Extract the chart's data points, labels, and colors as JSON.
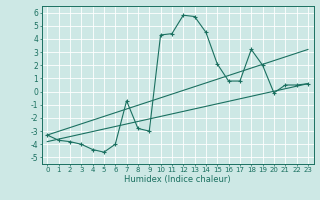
{
  "xlabel": "Humidex (Indice chaleur)",
  "bg_color": "#cde8e5",
  "grid_color": "#ffffff",
  "line_color": "#1a7060",
  "xlim": [
    -0.5,
    23.5
  ],
  "ylim": [
    -5.5,
    6.5
  ],
  "xticks": [
    0,
    1,
    2,
    3,
    4,
    5,
    6,
    7,
    8,
    9,
    10,
    11,
    12,
    13,
    14,
    15,
    16,
    17,
    18,
    19,
    20,
    21,
    22,
    23
  ],
  "yticks": [
    -5,
    -4,
    -3,
    -2,
    -1,
    0,
    1,
    2,
    3,
    4,
    5,
    6
  ],
  "series1_x": [
    0,
    1,
    2,
    3,
    4,
    5,
    6,
    7,
    8,
    9,
    10,
    11,
    12,
    13,
    14,
    15,
    16,
    17,
    18,
    19,
    20,
    21,
    22,
    23
  ],
  "series1_y": [
    -3.3,
    -3.7,
    -3.8,
    -4.0,
    -4.4,
    -4.6,
    -4.0,
    -0.7,
    -2.8,
    -3.0,
    4.3,
    4.4,
    5.8,
    5.7,
    4.5,
    2.1,
    0.8,
    0.8,
    3.2,
    2.0,
    -0.1,
    0.5,
    0.5,
    0.6
  ],
  "series2_x": [
    0,
    23
  ],
  "series2_y": [
    -3.8,
    0.6
  ],
  "series3_x": [
    0,
    23
  ],
  "series3_y": [
    -3.3,
    3.2
  ],
  "xlabel_fontsize": 6,
  "tick_fontsize": 5,
  "linewidth": 0.8,
  "markersize": 3
}
